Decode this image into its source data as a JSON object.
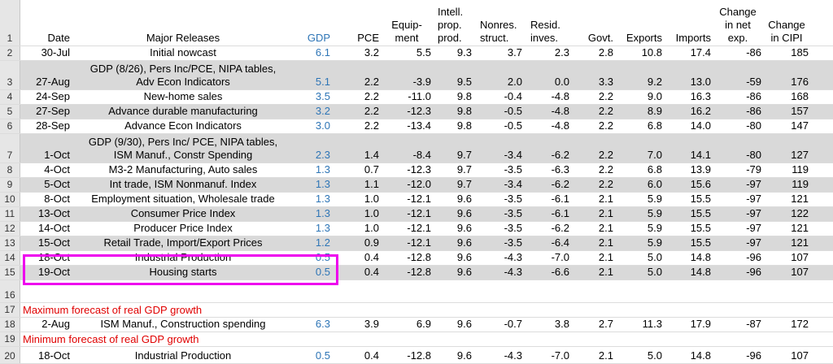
{
  "headers": {
    "rownum": "1",
    "date": "Date",
    "releases": "Major Releases",
    "gdp": "GDP",
    "pce": "PCE",
    "equipment": [
      "Equip-",
      "ment"
    ],
    "intell": [
      "Intell.",
      "prop.",
      "prod."
    ],
    "nonres": [
      "Nonres.",
      "struct."
    ],
    "resid": [
      "Resid.",
      "inves."
    ],
    "govt": "Govt.",
    "exports": "Exports",
    "imports": "Imports",
    "netexp": [
      "Change",
      "in net",
      "exp."
    ],
    "cipi": [
      "Change",
      "in CIPI"
    ]
  },
  "rows": [
    {
      "n": "2",
      "date": "30-Jul",
      "rel1": "",
      "rel": "Initial nowcast",
      "gdp": "6.1",
      "pce": "3.2",
      "eq": "5.5",
      "ip": "9.3",
      "ns": "3.7",
      "ri": "2.3",
      "gov": "2.8",
      "exp": "10.8",
      "imp": "17.4",
      "ne": "-86",
      "ci": "185",
      "shaded": false
    },
    {
      "n": "3",
      "date": "27-Aug",
      "rel1": "GDP (8/26), Pers Inc/PCE, NIPA tables,",
      "rel": "Adv Econ Indicators",
      "gdp": "5.1",
      "pce": "2.2",
      "eq": "-3.9",
      "ip": "9.5",
      "ns": "2.0",
      "ri": "0.0",
      "gov": "3.3",
      "exp": "9.2",
      "imp": "13.0",
      "ne": "-59",
      "ci": "176",
      "shaded": true
    },
    {
      "n": "4",
      "date": "24-Sep",
      "rel1": "",
      "rel": "New-home sales",
      "gdp": "3.5",
      "pce": "2.2",
      "eq": "-11.0",
      "ip": "9.8",
      "ns": "-0.4",
      "ri": "-4.8",
      "gov": "2.2",
      "exp": "9.0",
      "imp": "16.3",
      "ne": "-86",
      "ci": "168",
      "shaded": false
    },
    {
      "n": "5",
      "date": "27-Sep",
      "rel1": "",
      "rel": "Advance durable manufacturing",
      "gdp": "3.2",
      "pce": "2.2",
      "eq": "-12.3",
      "ip": "9.8",
      "ns": "-0.5",
      "ri": "-4.8",
      "gov": "2.2",
      "exp": "8.9",
      "imp": "16.2",
      "ne": "-86",
      "ci": "157",
      "shaded": true
    },
    {
      "n": "6",
      "date": "28-Sep",
      "rel1": "",
      "rel": "Advance Econ Indicators",
      "gdp": "3.0",
      "pce": "2.2",
      "eq": "-13.4",
      "ip": "9.8",
      "ns": "-0.5",
      "ri": "-4.8",
      "gov": "2.2",
      "exp": "6.8",
      "imp": "14.0",
      "ne": "-80",
      "ci": "147",
      "shaded": false
    },
    {
      "n": "7",
      "date": "1-Oct",
      "rel1": "GDP (9/30), Pers Inc/ PCE, NIPA tables,",
      "rel": "ISM Manuf., Constr Spending",
      "gdp": "2.3",
      "pce": "1.4",
      "eq": "-8.4",
      "ip": "9.7",
      "ns": "-3.4",
      "ri": "-6.2",
      "gov": "2.2",
      "exp": "7.0",
      "imp": "14.1",
      "ne": "-80",
      "ci": "127",
      "shaded": true
    },
    {
      "n": "8",
      "date": "4-Oct",
      "rel1": "",
      "rel": "M3-2 Manufacturing, Auto sales",
      "gdp": "1.3",
      "pce": "0.7",
      "eq": "-12.3",
      "ip": "9.7",
      "ns": "-3.5",
      "ri": "-6.3",
      "gov": "2.2",
      "exp": "6.8",
      "imp": "13.9",
      "ne": "-79",
      "ci": "119",
      "shaded": false
    },
    {
      "n": "9",
      "date": "5-Oct",
      "rel1": "",
      "rel": "Int trade, ISM Nonmanuf. Index",
      "gdp": "1.3",
      "pce": "1.1",
      "eq": "-12.0",
      "ip": "9.7",
      "ns": "-3.4",
      "ri": "-6.2",
      "gov": "2.2",
      "exp": "6.0",
      "imp": "15.6",
      "ne": "-97",
      "ci": "119",
      "shaded": true
    },
    {
      "n": "10",
      "date": "8-Oct",
      "rel1": "",
      "rel": "Employment situation, Wholesale trade",
      "gdp": "1.3",
      "pce": "1.0",
      "eq": "-12.1",
      "ip": "9.6",
      "ns": "-3.5",
      "ri": "-6.1",
      "gov": "2.1",
      "exp": "5.9",
      "imp": "15.5",
      "ne": "-97",
      "ci": "121",
      "shaded": false
    },
    {
      "n": "11",
      "date": "13-Oct",
      "rel1": "",
      "rel": "Consumer Price Index",
      "gdp": "1.3",
      "pce": "1.0",
      "eq": "-12.1",
      "ip": "9.6",
      "ns": "-3.5",
      "ri": "-6.1",
      "gov": "2.1",
      "exp": "5.9",
      "imp": "15.5",
      "ne": "-97",
      "ci": "122",
      "shaded": true
    },
    {
      "n": "12",
      "date": "14-Oct",
      "rel1": "",
      "rel": "Producer Price Index",
      "gdp": "1.3",
      "pce": "1.0",
      "eq": "-12.1",
      "ip": "9.6",
      "ns": "-3.5",
      "ri": "-6.2",
      "gov": "2.1",
      "exp": "5.9",
      "imp": "15.5",
      "ne": "-97",
      "ci": "121",
      "shaded": false
    },
    {
      "n": "13",
      "date": "15-Oct",
      "rel1": "",
      "rel": "Retail Trade, Import/Export Prices",
      "gdp": "1.2",
      "pce": "0.9",
      "eq": "-12.1",
      "ip": "9.6",
      "ns": "-3.5",
      "ri": "-6.4",
      "gov": "2.1",
      "exp": "5.9",
      "imp": "15.5",
      "ne": "-97",
      "ci": "121",
      "shaded": true
    },
    {
      "n": "14",
      "date": "18-Oct",
      "rel1": "",
      "rel": "Industrial Production",
      "gdp": "0.5",
      "pce": "0.4",
      "eq": "-12.8",
      "ip": "9.6",
      "ns": "-4.3",
      "ri": "-7.0",
      "gov": "2.1",
      "exp": "5.0",
      "imp": "14.8",
      "ne": "-96",
      "ci": "107",
      "shaded": false
    },
    {
      "n": "15",
      "date": "19-Oct",
      "rel1": "",
      "rel": "Housing starts",
      "gdp": "0.5",
      "pce": "0.4",
      "eq": "-12.8",
      "ip": "9.6",
      "ns": "-4.3",
      "ri": "-6.6",
      "gov": "2.1",
      "exp": "5.0",
      "imp": "14.8",
      "ne": "-96",
      "ci": "107",
      "shaded": true
    }
  ],
  "row16": {
    "n": "16"
  },
  "max_label": {
    "n": "17",
    "text": "Maximum forecast of real GDP growth"
  },
  "max_row": {
    "n": "18",
    "date": "2-Aug",
    "rel": "ISM Manuf., Construction spending",
    "gdp": "6.3",
    "pce": "3.9",
    "eq": "6.9",
    "ip": "9.6",
    "ns": "-0.7",
    "ri": "3.8",
    "gov": "2.7",
    "exp": "11.3",
    "imp": "17.9",
    "ne": "-87",
    "ci": "172"
  },
  "min_label": {
    "n": "19",
    "text": "Minimum forecast of real GDP growth"
  },
  "min_row": {
    "n": "20",
    "date": "18-Oct",
    "rel": "Industrial Production",
    "gdp": "0.5",
    "pce": "0.4",
    "eq": "-12.8",
    "ip": "9.6",
    "ns": "-4.3",
    "ri": "-7.0",
    "gov": "2.1",
    "exp": "5.0",
    "imp": "14.8",
    "ne": "-96",
    "ci": "107"
  },
  "colors": {
    "gdp_text": "#2e75b6",
    "shade": "#d9d9d9",
    "highlight": "#ee00ee",
    "label_red": "#e00000"
  }
}
